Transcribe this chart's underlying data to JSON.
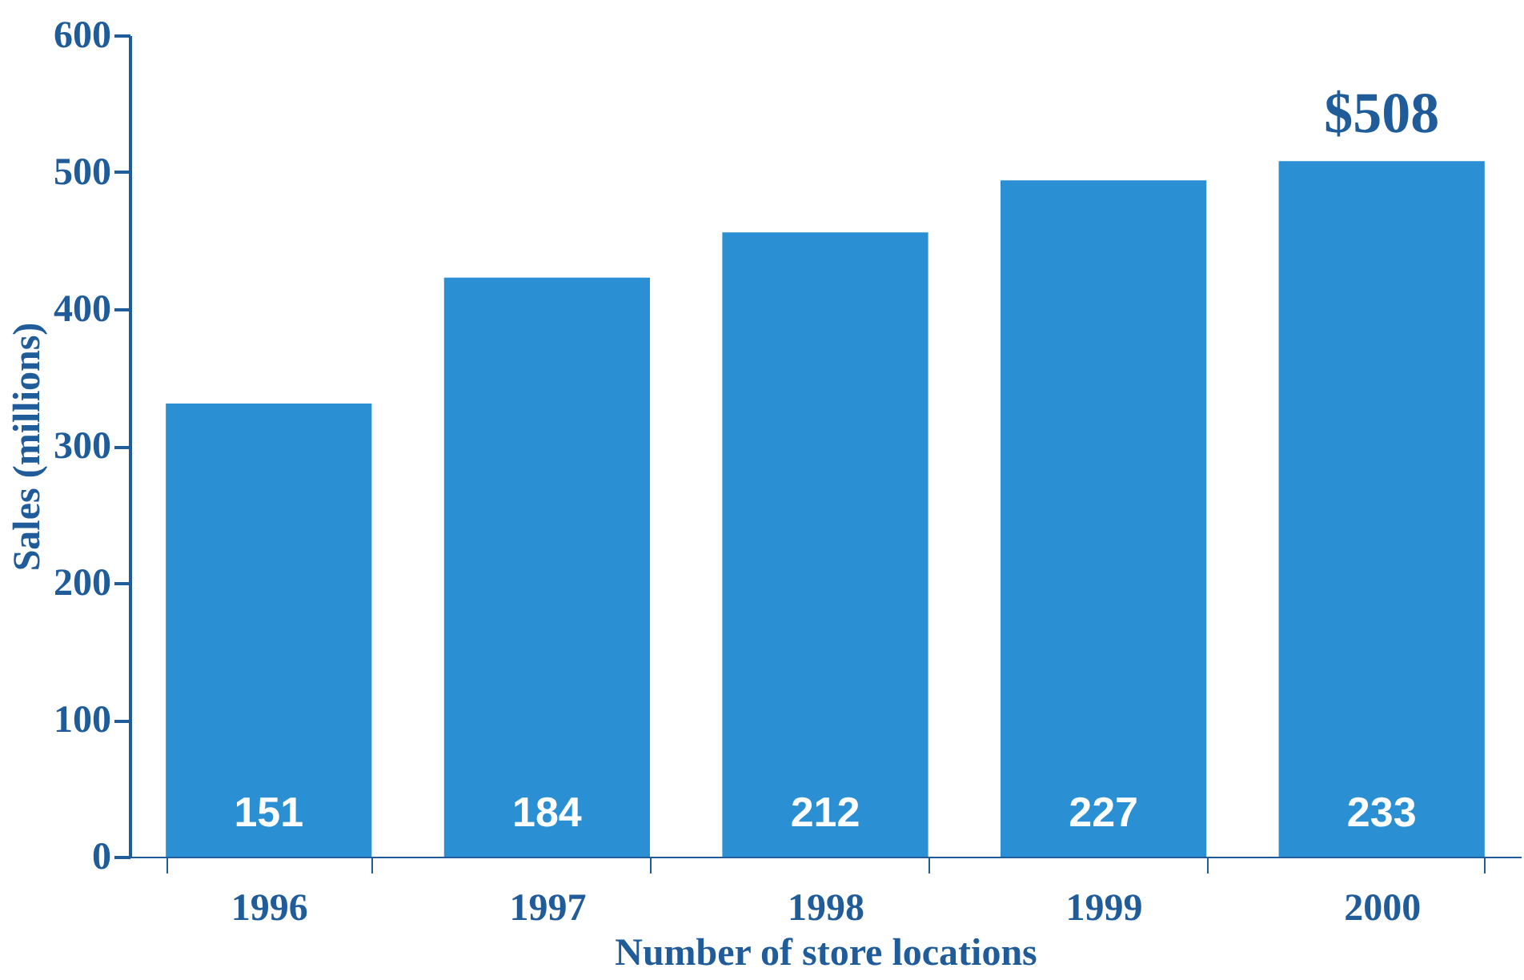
{
  "chart_data": {
    "type": "bar",
    "xlabel": "Number of store locations",
    "ylabel": "Sales (millions)",
    "categories": [
      "1996",
      "1997",
      "1998",
      "1999",
      "2000"
    ],
    "values": [
      331,
      423,
      456,
      494,
      508
    ],
    "color": "#2b8fd3",
    "ylim": [
      0,
      600
    ],
    "yticks": [
      0,
      100,
      200,
      300,
      400,
      500,
      600
    ],
    "grid": false,
    "annotations": [
      {
        "text": "$508",
        "x": "2000",
        "y": 508
      },
      {
        "text": "151",
        "x": "1996",
        "y": 0
      },
      {
        "text": "184",
        "x": "1997",
        "y": 0
      },
      {
        "text": "212",
        "x": "1998",
        "y": 0
      },
      {
        "text": "227",
        "x": "1999",
        "y": 0
      },
      {
        "text": "233",
        "x": "2000",
        "y": 0
      }
    ]
  }
}
